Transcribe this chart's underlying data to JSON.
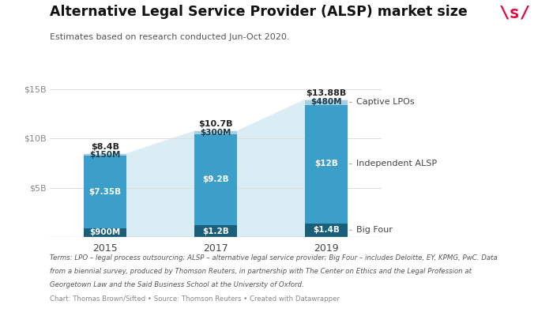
{
  "title": "Alternative Legal Service Provider (ALSP) market size",
  "subtitle": "Estimates based on research conducted Jun-Oct 2020.",
  "years": [
    2015,
    2017,
    2019
  ],
  "big_four": [
    0.9,
    1.2,
    1.4
  ],
  "independent_alsp": [
    7.35,
    9.2,
    12.0
  ],
  "captive_lpos": [
    0.15,
    0.3,
    0.48
  ],
  "totals": [
    8.4,
    10.7,
    13.88
  ],
  "bg_color": "#ffffff",
  "color_big_four": "#1a5f7a",
  "color_independent": "#3c9fc9",
  "color_captive": "#a8cfe0",
  "color_area": "#daedf5",
  "label_big_four": [
    "$900M",
    "$1.2B",
    "$1.4B"
  ],
  "label_independent": [
    "$7.35B",
    "$9.2B",
    "$12B"
  ],
  "label_captive": [
    "$150M",
    "$300M",
    "$480M"
  ],
  "label_total": [
    "$8.4B",
    "$10.7B",
    "$13.88B"
  ],
  "footer_text1": "Terms: LPO – legal process outsourcing; ALSP – alternative legal service provider; Big Four – includes Deloitte, EY, KPMG, PwC. Data",
  "footer_text2": "from a biennial survey, produced by Thomson Reuters, in partnership with The Center on Ethics and the Legal Profession at",
  "footer_text3": "Georgetown Law and the Said Business School at the University of Oxford.",
  "footer_text4": "Chart: Thomas Brown/Sifted • Source: Thomson Reuters • Created with Datawrapper",
  "bar_width": 0.38
}
